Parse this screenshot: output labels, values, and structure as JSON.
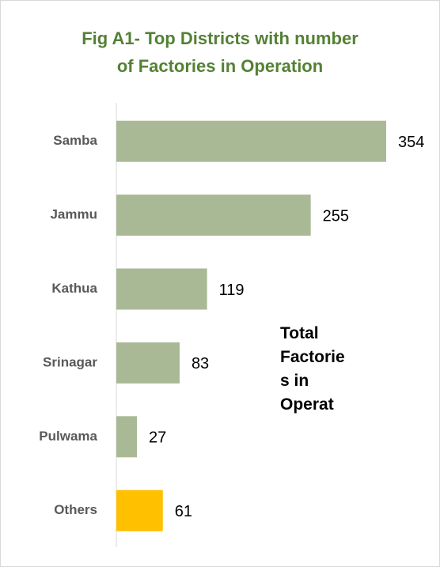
{
  "chart_data": {
    "type": "bar",
    "orientation": "horizontal",
    "title": [
      "Fig A1- Top Districts with number",
      "of Factories in Operation"
    ],
    "categories": [
      "Samba",
      "Jammu",
      "Kathua",
      "Srinagar",
      "Pulwama",
      "Others"
    ],
    "series": [
      {
        "name": "Total Factories in Operat",
        "values": [
          354,
          255,
          119,
          83,
          27,
          61
        ],
        "colors": [
          "#a9b996",
          "#a9b996",
          "#a9b996",
          "#a9b996",
          "#a9b996",
          "#ffc000"
        ]
      }
    ]
  }
}
